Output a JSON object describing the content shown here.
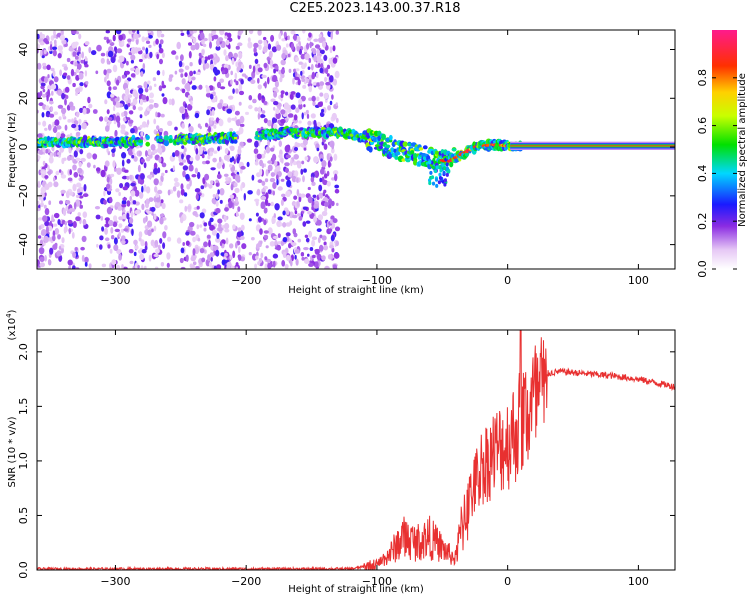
{
  "title": "C2E5.2023.143.00.37.R18",
  "chart_data": [
    {
      "type": "heatmap",
      "title": "C2E5.2023.143.00.37.R18",
      "xlabel": "Height of straight line (km)",
      "ylabel": "Frequency (Hz)",
      "xlim": [
        -360,
        128
      ],
      "ylim": [
        -50,
        48
      ],
      "xticks": [
        -300,
        -200,
        -100,
        0,
        100
      ],
      "yticks": [
        -40,
        -20,
        0,
        20,
        40
      ],
      "colorbar": {
        "label": "Normalized spectral amplitude",
        "range": [
          0,
          1
        ],
        "ticks": [
          0.0,
          0.2,
          0.4,
          0.6,
          0.8
        ]
      },
      "ridge": {
        "description": "dominant frequency track",
        "x": [
          -360,
          -300,
          -250,
          -200,
          -170,
          -130,
          -110,
          -90,
          -70,
          -55,
          -45,
          -35,
          -25,
          -10,
          0,
          128
        ],
        "freq": [
          2,
          2,
          3,
          4,
          6,
          6,
          4,
          0,
          -3,
          -5,
          -6,
          -3,
          0,
          1,
          0.5,
          0.5
        ]
      }
    },
    {
      "type": "line",
      "xlabel": "Height of straight line (km)",
      "ylabel": "SNR (10 * v/v)",
      "yscale_label": "(x10",
      "yscale_exp": "4",
      "ylabel_short": ")",
      "xlim": [
        -360,
        128
      ],
      "ylim": [
        0,
        2.2
      ],
      "xticks": [
        -300,
        -200,
        -100,
        0,
        100
      ],
      "yticks": [
        0.0,
        0.5,
        1.0,
        1.5,
        2.0
      ],
      "series": [
        {
          "name": "SNR",
          "color": "#e83030",
          "x": [
            -360,
            -300,
            -250,
            -200,
            -150,
            -120,
            -100,
            -90,
            -80,
            -70,
            -60,
            -50,
            -40,
            -30,
            -20,
            -10,
            0,
            10,
            20,
            30,
            40,
            60,
            80,
            100,
            128
          ],
          "y": [
            0.01,
            0.01,
            0.01,
            0.01,
            0.01,
            0.01,
            0.05,
            0.15,
            0.3,
            0.25,
            0.3,
            0.2,
            0.1,
            0.7,
            1.05,
            1.2,
            1.3,
            1.5,
            1.7,
            1.8,
            1.82,
            1.8,
            1.78,
            1.75,
            1.68
          ]
        }
      ]
    }
  ]
}
